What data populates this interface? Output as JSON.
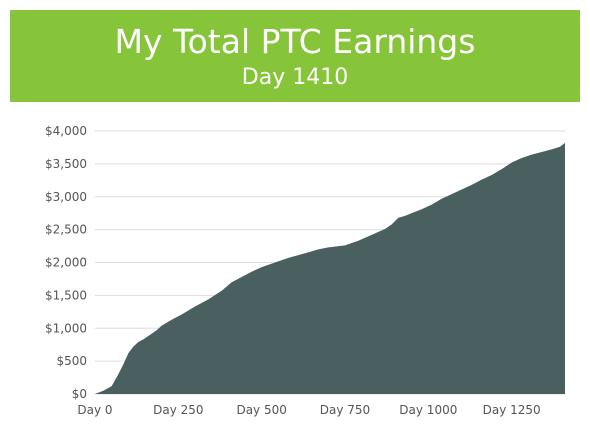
{
  "header": {
    "title": "My Total PTC Earnings",
    "subtitle": "Day 1410"
  },
  "colors": {
    "banner": "#86c43a",
    "area_fill": "#4a5f60",
    "gridline": "#dddddd",
    "text": "#555555"
  },
  "chart_data": {
    "type": "area",
    "title": "My Total PTC Earnings",
    "subtitle": "Day 1410",
    "xlabel": "",
    "ylabel": "",
    "grid": true,
    "legend": "none",
    "xlim": [
      0,
      1410
    ],
    "ylim": [
      0,
      4000
    ],
    "x_ticks": [
      0,
      250,
      500,
      750,
      1000,
      1250
    ],
    "x_tick_labels": [
      "Day 0",
      "Day 250",
      "Day 500",
      "Day 750",
      "Day 1000",
      "Day 1250"
    ],
    "y_ticks": [
      0,
      500,
      1000,
      1500,
      2000,
      2500,
      3000,
      3500,
      4000
    ],
    "y_tick_labels": [
      "$0",
      "$500",
      "$1,000",
      "$1,500",
      "$2,000",
      "$2,500",
      "$3,000",
      "$3,500",
      "$4,000"
    ],
    "series": [
      {
        "x": [
          0,
          25,
          50,
          70,
          85,
          100,
          115,
          130,
          145,
          165,
          185,
          200,
          230,
          260,
          300,
          340,
          380,
          410,
          440,
          470,
          500,
          540,
          580,
          630,
          670,
          700,
          750,
          790,
          830,
          870,
          890,
          910,
          930,
          955,
          980,
          1010,
          1040,
          1070,
          1100,
          1130,
          1160,
          1190,
          1220,
          1250,
          1280,
          1310,
          1340,
          1370,
          1395,
          1410
        ],
        "y": [
          0,
          50,
          120,
          300,
          450,
          620,
          720,
          790,
          830,
          900,
          970,
          1040,
          1130,
          1210,
          1330,
          1440,
          1570,
          1700,
          1780,
          1860,
          1930,
          2000,
          2070,
          2140,
          2200,
          2230,
          2260,
          2330,
          2420,
          2510,
          2580,
          2680,
          2710,
          2760,
          2810,
          2880,
          2970,
          3040,
          3110,
          3180,
          3260,
          3330,
          3420,
          3520,
          3590,
          3640,
          3680,
          3720,
          3760,
          3820
        ]
      }
    ]
  }
}
